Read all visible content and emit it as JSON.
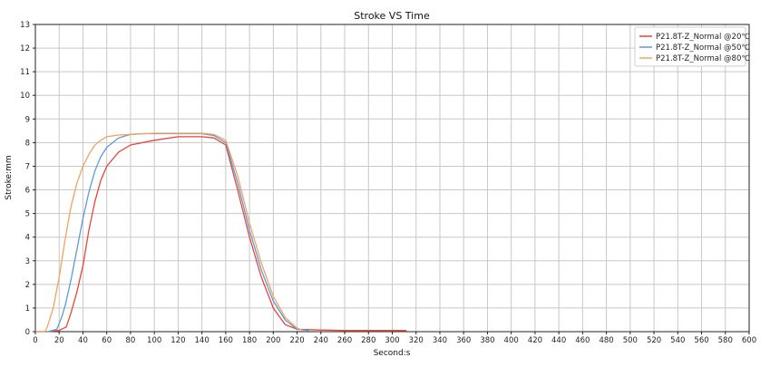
{
  "chart_data": {
    "type": "line",
    "title": "Stroke VS Time",
    "xlabel": "Second:s",
    "ylabel": "Stroke:mm",
    "xlim": [
      0,
      600
    ],
    "ylim": [
      0,
      13
    ],
    "xticks": [
      0,
      20,
      40,
      60,
      80,
      100,
      120,
      140,
      160,
      180,
      200,
      220,
      240,
      260,
      280,
      300,
      320,
      340,
      360,
      380,
      400,
      420,
      440,
      460,
      480,
      500,
      520,
      540,
      560,
      580,
      600
    ],
    "yticks": [
      0,
      1,
      2,
      3,
      4,
      5,
      6,
      7,
      8,
      9,
      10,
      11,
      12,
      13
    ],
    "grid": true,
    "legend_position": "top-right",
    "series": [
      {
        "name": "P21.8T-Z_Normal @20℃",
        "color": "#e8443a",
        "x": [
          0,
          10,
          20,
          26,
          30,
          35,
          40,
          45,
          50,
          55,
          60,
          70,
          80,
          100,
          120,
          140,
          150,
          160,
          170,
          180,
          190,
          200,
          210,
          220,
          240,
          260,
          280,
          300,
          312
        ],
        "y": [
          0,
          0,
          0.05,
          0.2,
          0.8,
          1.7,
          2.8,
          4.3,
          5.5,
          6.4,
          7.0,
          7.6,
          7.9,
          8.1,
          8.25,
          8.25,
          8.2,
          7.9,
          6.0,
          4.0,
          2.3,
          1.0,
          0.3,
          0.1,
          0.07,
          0.05,
          0.05,
          0.05,
          0.05
        ]
      },
      {
        "name": "P21.8T-Z_Normal @50℃",
        "color": "#5b9bd5",
        "x": [
          0,
          10,
          18,
          22,
          25,
          30,
          35,
          40,
          45,
          50,
          55,
          60,
          70,
          80,
          90,
          100,
          120,
          140,
          150,
          160,
          170,
          180,
          190,
          200,
          210,
          220,
          230
        ],
        "y": [
          0,
          0,
          0.1,
          0.6,
          1.1,
          2.2,
          3.5,
          4.8,
          5.9,
          6.8,
          7.4,
          7.8,
          8.2,
          8.35,
          8.38,
          8.38,
          8.38,
          8.38,
          8.3,
          8.0,
          6.3,
          4.3,
          2.6,
          1.3,
          0.5,
          0.1,
          0.05
        ]
      },
      {
        "name": "P21.8T-Z_Normal @80℃",
        "color": "#f5a25d",
        "x": [
          0,
          8,
          10,
          15,
          20,
          25,
          30,
          35,
          40,
          45,
          50,
          55,
          60,
          70,
          80,
          100,
          120,
          140,
          150,
          160,
          170,
          180,
          190,
          200,
          210,
          220,
          225
        ],
        "y": [
          0,
          0,
          0.2,
          1.0,
          2.3,
          3.9,
          5.3,
          6.3,
          7.0,
          7.5,
          7.9,
          8.1,
          8.25,
          8.32,
          8.35,
          8.4,
          8.4,
          8.4,
          8.35,
          8.1,
          6.6,
          4.6,
          2.9,
          1.5,
          0.6,
          0.15,
          0.05
        ]
      }
    ]
  }
}
